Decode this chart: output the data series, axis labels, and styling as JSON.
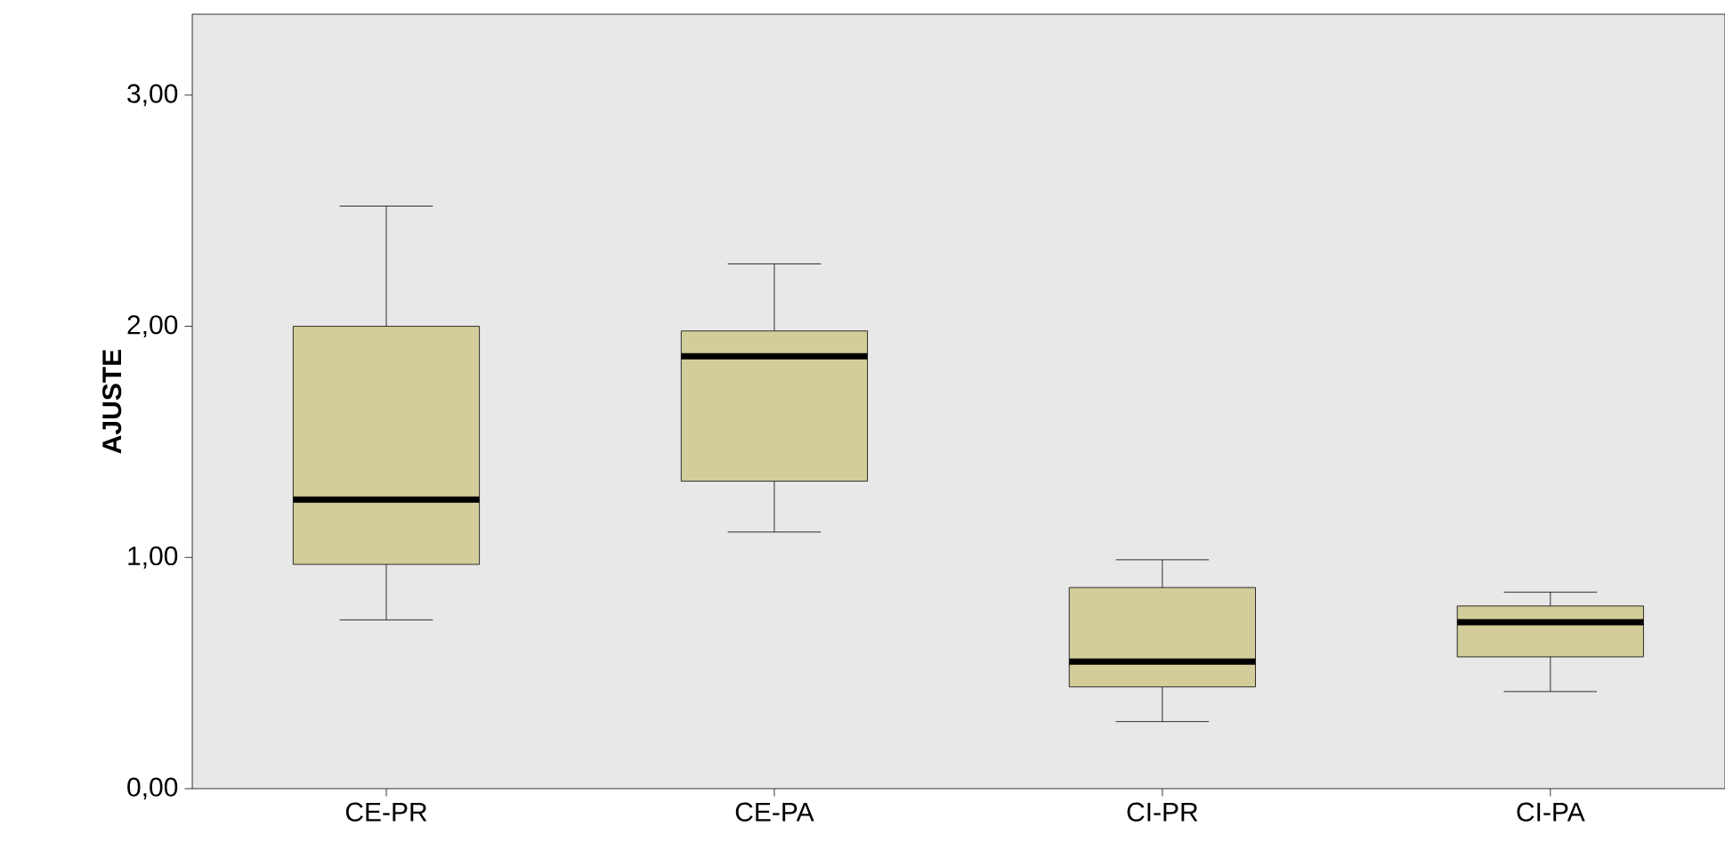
{
  "chart_data": {
    "type": "box",
    "ylabel": "AJUSTE",
    "categories": [
      "CE-PR",
      "CE-PA",
      "CI-PR",
      "CI-PA"
    ],
    "color": "#d3cd9b",
    "boxes": [
      {
        "low": 0.73,
        "q1": 0.97,
        "median": 1.25,
        "q3": 2.0,
        "high": 2.52
      },
      {
        "low": 1.11,
        "q1": 1.33,
        "median": 1.87,
        "q3": 1.98,
        "high": 2.27
      },
      {
        "low": 0.29,
        "q1": 0.44,
        "median": 0.55,
        "q3": 0.87,
        "high": 0.99
      },
      {
        "low": 0.42,
        "q1": 0.57,
        "median": 0.72,
        "q3": 0.79,
        "high": 0.85
      }
    ],
    "ylim": [
      0,
      3.35
    ],
    "yticks": [
      {
        "value": 0,
        "label": "0,00"
      },
      {
        "value": 1,
        "label": "1,00"
      },
      {
        "value": 2,
        "label": "2,00"
      },
      {
        "value": 3,
        "label": "3,00"
      }
    ]
  }
}
